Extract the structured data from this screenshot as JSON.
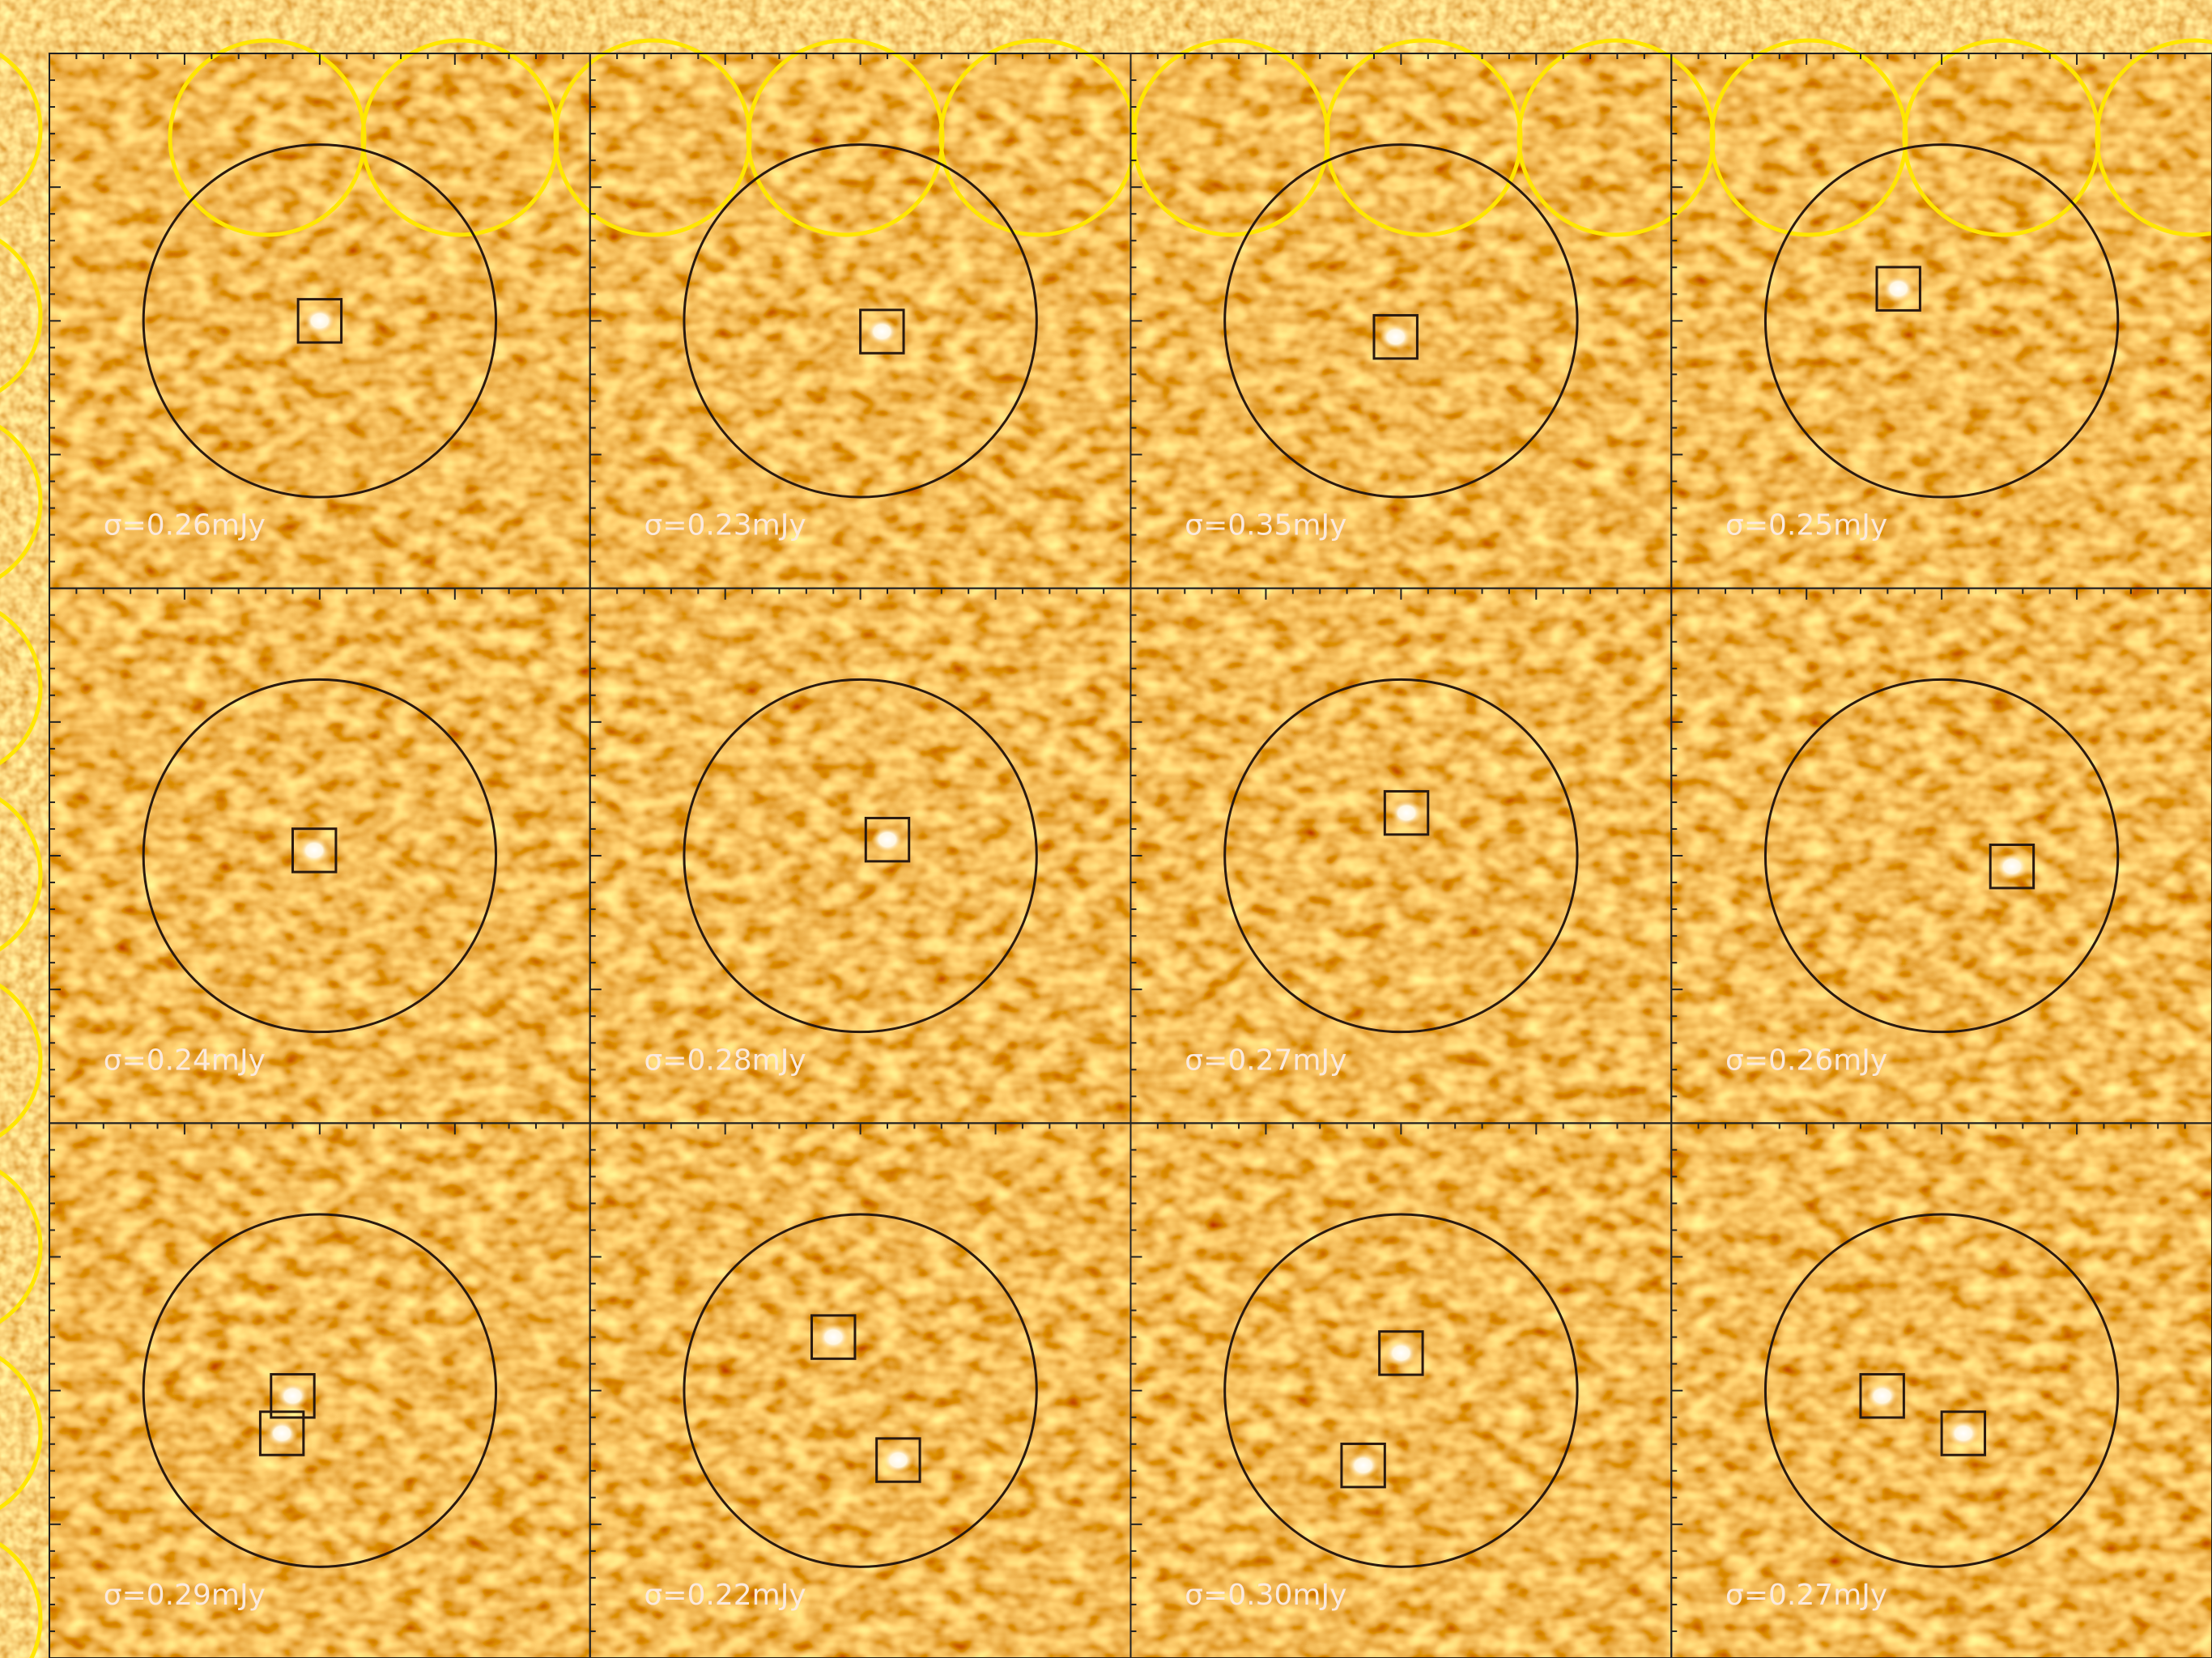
{
  "panels": [
    {
      "label": "σ=0.26mJy"
    },
    {
      "label": "σ=0.23mJy"
    },
    {
      "label": "σ=0.35mJy"
    },
    {
      "label": "σ=0.25mJy"
    },
    {
      "label": "σ=0.24mJy"
    },
    {
      "label": "σ=0.28mJy"
    },
    {
      "label": "σ=0.27mJy"
    },
    {
      "label": "σ=0.26mJy"
    },
    {
      "label": "σ=0.29mJy"
    },
    {
      "label": "σ=0.22mJy"
    },
    {
      "label": "σ=0.30mJy"
    },
    {
      "label": "σ=0.27mJy"
    }
  ]
}
